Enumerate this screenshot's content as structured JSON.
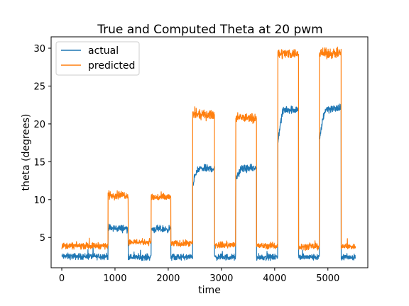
{
  "chart_data": {
    "type": "line",
    "title": "True and Computed Theta at 20 pwm",
    "xlabel": "time",
    "ylabel": "theta (degrees)",
    "xlim": [
      -200,
      5750
    ],
    "ylim": [
      1,
      31.5
    ],
    "xticks": [
      0,
      1000,
      2000,
      3000,
      4000,
      5000
    ],
    "yticks": [
      5,
      10,
      15,
      20,
      25,
      30
    ],
    "grid": false,
    "legend_position": "top-left",
    "series": [
      {
        "name": "actual",
        "color": "#1f77b4",
        "segments": [
          {
            "x_start": 0,
            "x_end": 870,
            "base": 2.5,
            "noise": 0.35
          },
          {
            "x_start": 870,
            "x_end": 1250,
            "base": 6.2,
            "noise": 0.4
          },
          {
            "x_start": 1250,
            "x_end": 1680,
            "base": 2.4,
            "noise": 0.35
          },
          {
            "x_start": 1680,
            "x_end": 2050,
            "base": 6.1,
            "noise": 0.4
          },
          {
            "x_start": 2050,
            "x_end": 2460,
            "base": 2.4,
            "noise": 0.35
          },
          {
            "x_start": 2460,
            "x_end": 2870,
            "base": 14.1,
            "noise": 0.4,
            "rise_from": 12.0
          },
          {
            "x_start": 2870,
            "x_end": 3270,
            "base": 2.4,
            "noise": 0.35
          },
          {
            "x_start": 3270,
            "x_end": 3660,
            "base": 14.1,
            "noise": 0.4,
            "rise_from": 12.5
          },
          {
            "x_start": 3660,
            "x_end": 4060,
            "base": 2.4,
            "noise": 0.35
          },
          {
            "x_start": 4060,
            "x_end": 4450,
            "base": 21.9,
            "noise": 0.45,
            "rise_from": 17.5
          },
          {
            "x_start": 4450,
            "x_end": 4840,
            "base": 2.4,
            "noise": 0.35
          },
          {
            "x_start": 4840,
            "x_end": 5250,
            "base": 22.0,
            "noise": 0.45,
            "rise_from": 17.5
          },
          {
            "x_start": 5250,
            "x_end": 5520,
            "base": 2.4,
            "noise": 0.35
          }
        ]
      },
      {
        "name": "predicted",
        "color": "#ff7f0e",
        "segments": [
          {
            "x_start": 0,
            "x_end": 870,
            "base": 3.9,
            "noise": 0.35
          },
          {
            "x_start": 870,
            "x_end": 1250,
            "base": 10.6,
            "noise": 0.45
          },
          {
            "x_start": 1250,
            "x_end": 1680,
            "base": 4.4,
            "noise": 0.35
          },
          {
            "x_start": 1680,
            "x_end": 2050,
            "base": 10.3,
            "noise": 0.45
          },
          {
            "x_start": 2050,
            "x_end": 2460,
            "base": 4.2,
            "noise": 0.35
          },
          {
            "x_start": 2460,
            "x_end": 2870,
            "base": 21.2,
            "noise": 0.5
          },
          {
            "x_start": 2870,
            "x_end": 3270,
            "base": 4.0,
            "noise": 0.35
          },
          {
            "x_start": 3270,
            "x_end": 3660,
            "base": 20.8,
            "noise": 0.5
          },
          {
            "x_start": 3660,
            "x_end": 4060,
            "base": 3.9,
            "noise": 0.35
          },
          {
            "x_start": 4060,
            "x_end": 4450,
            "base": 29.3,
            "noise": 0.55
          },
          {
            "x_start": 4450,
            "x_end": 4840,
            "base": 3.8,
            "noise": 0.35
          },
          {
            "x_start": 4840,
            "x_end": 5250,
            "base": 29.3,
            "noise": 0.55
          },
          {
            "x_start": 5250,
            "x_end": 5520,
            "base": 3.8,
            "noise": 0.35
          }
        ]
      }
    ]
  }
}
